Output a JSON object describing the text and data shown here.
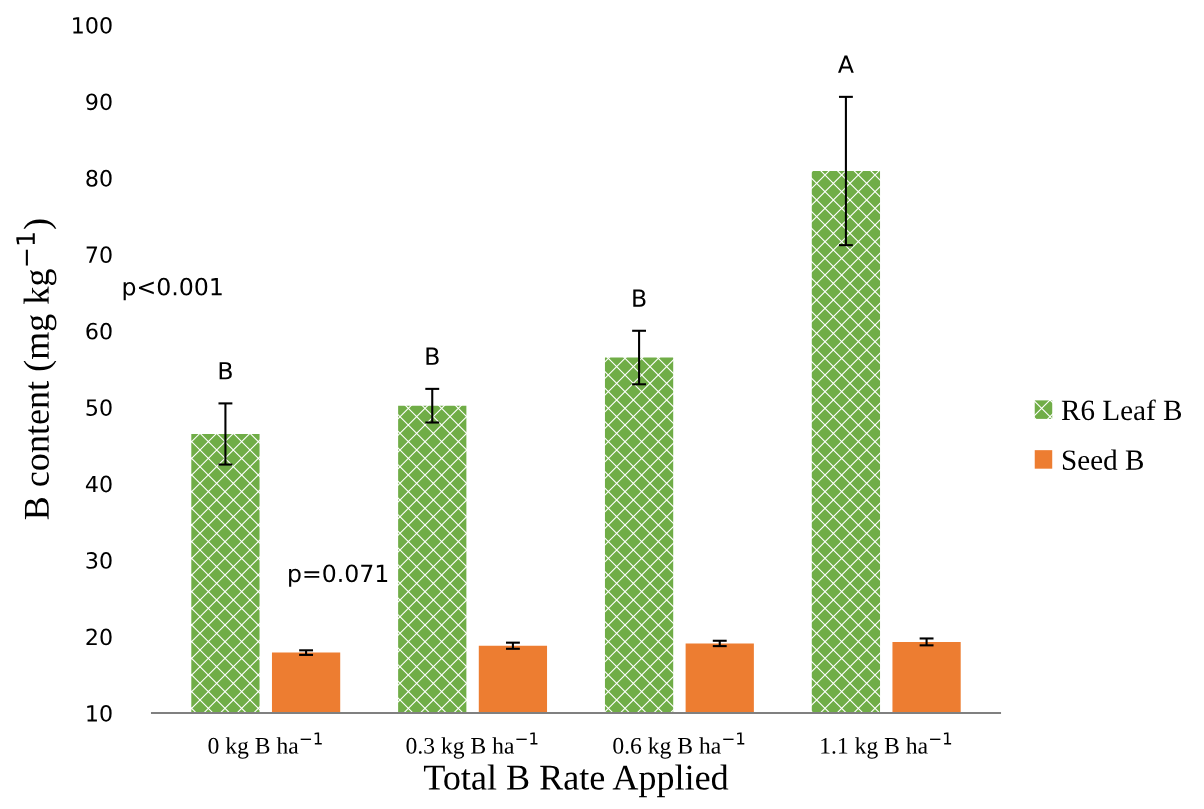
{
  "chart_data": {
    "type": "bar",
    "xlabel": "Total B Rate Applied",
    "ylabel": "B content (mg kg$^{−1}$)",
    "categories": [
      "0 kg B ha$^{−1}$",
      "0.3 kg B ha$^{−1}$",
      "0.6 kg B ha$^{−1}$",
      "1.1 kg B ha$^{−1}$"
    ],
    "series": [
      {
        "name": "R6 Leaf B",
        "color": "#70ad47",
        "values": [
          46.5,
          50.2,
          56.5,
          80.9
        ],
        "errors": [
          4.0,
          2.2,
          3.5,
          9.7
        ]
      },
      {
        "name": "Seed B",
        "color": "#ed7d31",
        "values": [
          17.9,
          18.8,
          19.1,
          19.3
        ],
        "errors": [
          0.3,
          0.4,
          0.35,
          0.45
        ]
      }
    ],
    "ylim": [
      10,
      100
    ],
    "yticks": [
      10,
      20,
      30,
      40,
      50,
      60,
      70,
      80,
      90,
      100
    ],
    "grid": false,
    "legend": "right",
    "annotations": [
      "B",
      "B",
      "B",
      "A",
      "p<0.001",
      "p=0.071"
    ]
  }
}
